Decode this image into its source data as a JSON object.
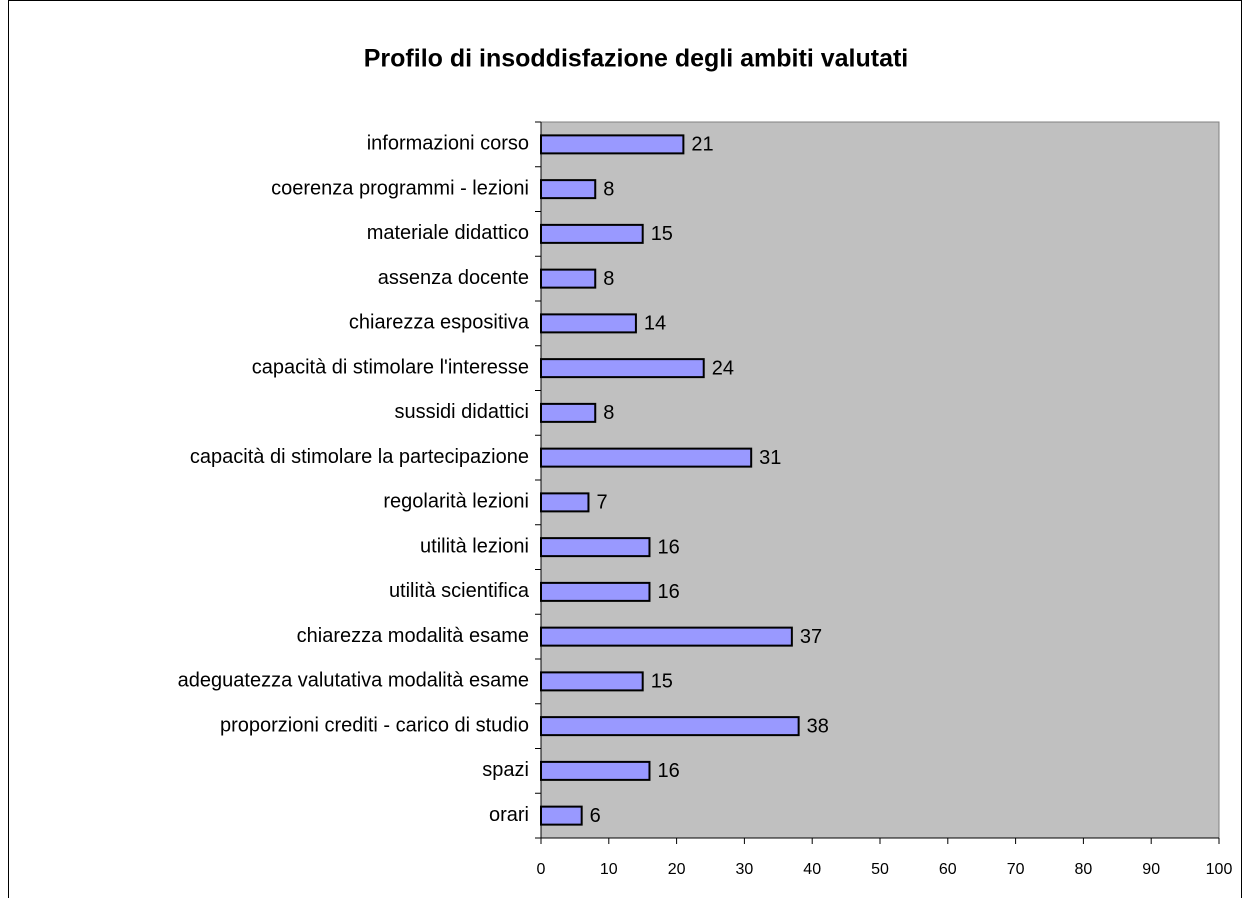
{
  "chart_data": {
    "type": "bar",
    "orientation": "horizontal",
    "title": "Profilo di insoddisfazione degli ambiti valutati",
    "categories": [
      "informazioni corso",
      "coerenza programmi - lezioni",
      "materiale didattico",
      "assenza docente",
      "chiarezza espositiva",
      "capacità di stimolare l'interesse",
      "sussidi didattici",
      "capacità di stimolare la partecipazione",
      "regolarità lezioni",
      "utilità lezioni",
      "utilità scientifica",
      "chiarezza modalità esame",
      "adeguatezza valutativa modalità esame",
      "proporzioni crediti - carico di studio",
      "spazi",
      "orari"
    ],
    "values": [
      21,
      8,
      15,
      8,
      14,
      24,
      8,
      31,
      7,
      16,
      16,
      37,
      15,
      38,
      16,
      6
    ],
    "color": "#9999ff",
    "plot_background": "#c0c0c0",
    "xlim": [
      0,
      100
    ],
    "xticks": [
      0,
      10,
      20,
      30,
      40,
      50,
      60,
      70,
      80,
      90,
      100
    ],
    "grid": false
  }
}
